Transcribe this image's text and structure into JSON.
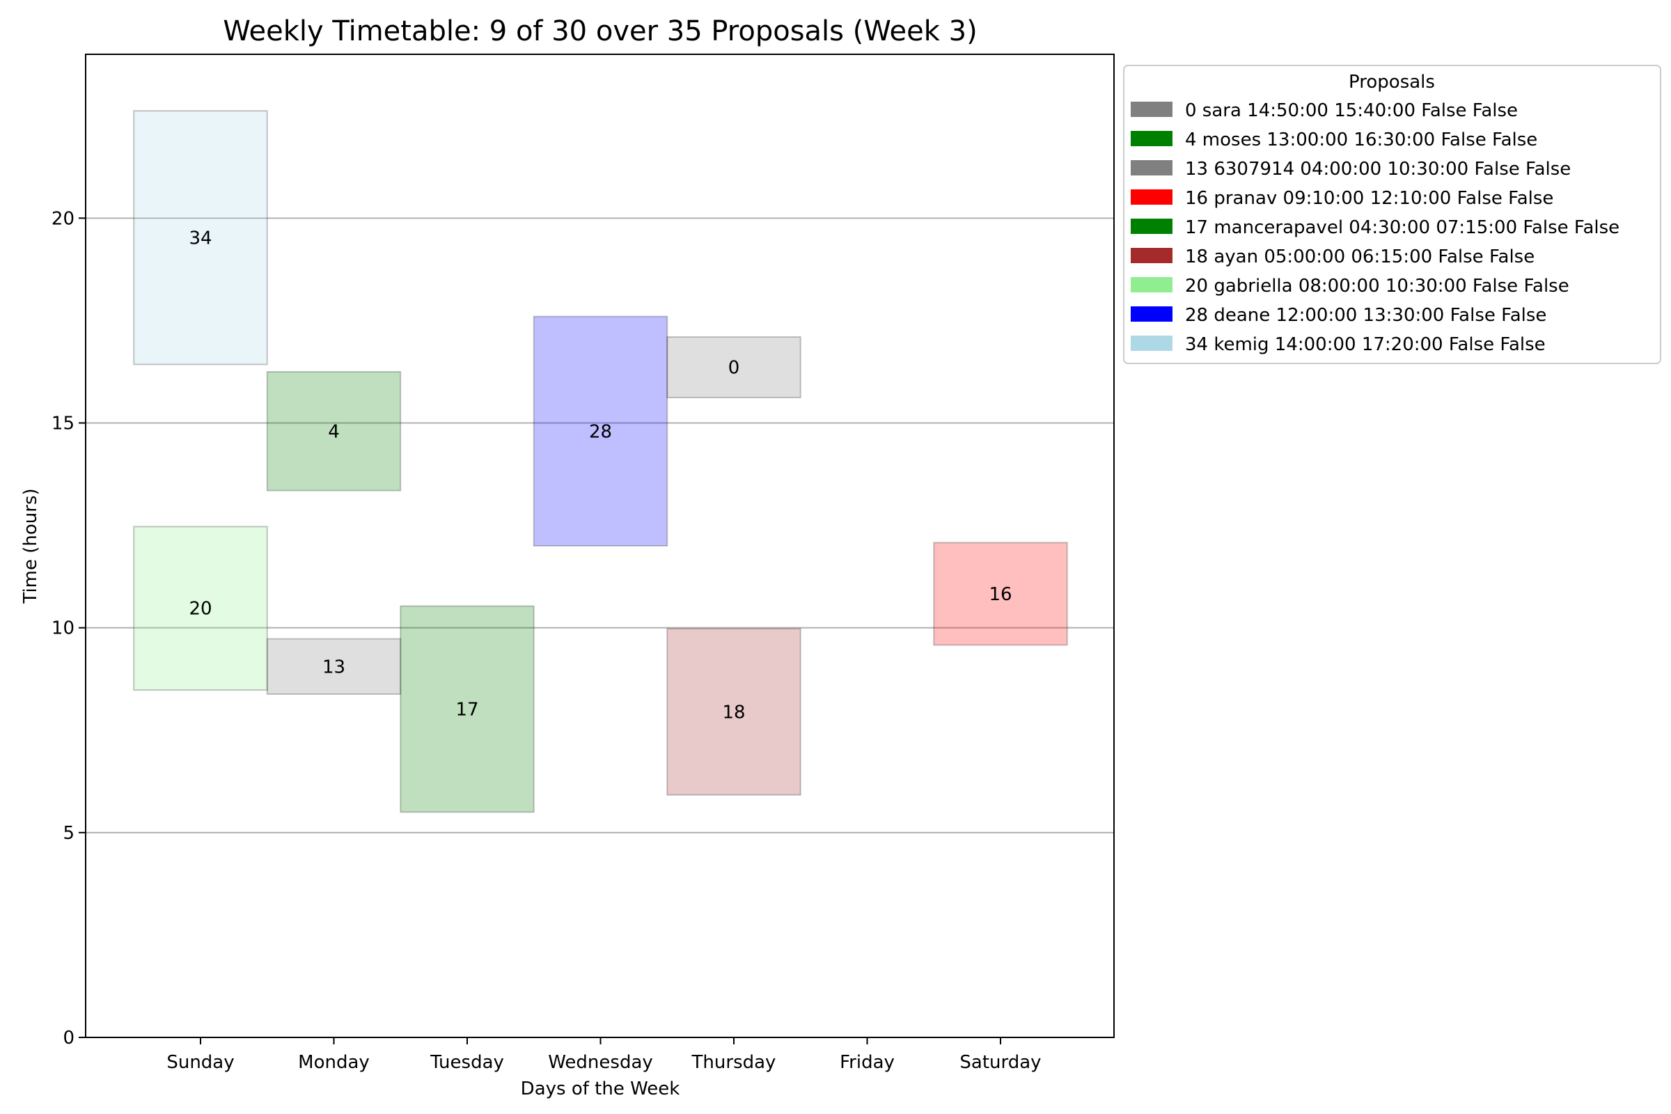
{
  "chart_data": {
    "type": "bar",
    "title": "Weekly Timetable: 9 of 30 over 35 Proposals (Week 3)",
    "xlabel": "Days of the Week",
    "ylabel": "Time (hours)",
    "categories": [
      "Sunday",
      "Monday",
      "Tuesday",
      "Wednesday",
      "Thursday",
      "Friday",
      "Saturday"
    ],
    "ylim": [
      0,
      24
    ],
    "yticks": [
      0,
      5,
      10,
      15,
      20
    ],
    "grid": "horizontal",
    "legend": {
      "title": "Proposals",
      "placement": "outside-top-right"
    },
    "series": [
      {
        "id": "0",
        "name": "0 sara 14:50:00 15:40:00 False False",
        "color": "#808080",
        "day": "Thursday",
        "start": 15.62,
        "end": 17.1
      },
      {
        "id": "4",
        "name": "4 moses 13:00:00 16:30:00 False False",
        "color": "#008000",
        "day": "Monday",
        "start": 13.35,
        "end": 16.25
      },
      {
        "id": "13",
        "name": "13 6307914 04:00:00 10:30:00 False False",
        "color": "#808080",
        "day": "Monday",
        "start": 8.38,
        "end": 9.73
      },
      {
        "id": "16",
        "name": "16 pranav 09:10:00 12:10:00 False False",
        "color": "#ff0000",
        "day": "Saturday",
        "start": 9.58,
        "end": 12.08
      },
      {
        "id": "17",
        "name": "17 mancerapavel 04:30:00 07:15:00 False False",
        "color": "#008000",
        "day": "Tuesday",
        "start": 5.5,
        "end": 10.53
      },
      {
        "id": "18",
        "name": "18 ayan 05:00:00 06:15:00 False False",
        "color": "#a52a2a",
        "day": "Thursday",
        "start": 5.92,
        "end": 9.98
      },
      {
        "id": "20",
        "name": "20 gabriella 08:00:00 10:30:00 False False",
        "color": "#90ee90",
        "day": "Sunday",
        "start": 8.48,
        "end": 12.47
      },
      {
        "id": "28",
        "name": "28 deane 12:00:00 13:30:00 False False",
        "color": "#0000ff",
        "day": "Wednesday",
        "start": 12.0,
        "end": 17.6
      },
      {
        "id": "34",
        "name": "34 kemig 14:00:00 17:20:00 False False",
        "color": "#add8e6",
        "day": "Sunday",
        "start": 16.43,
        "end": 22.62
      }
    ]
  }
}
